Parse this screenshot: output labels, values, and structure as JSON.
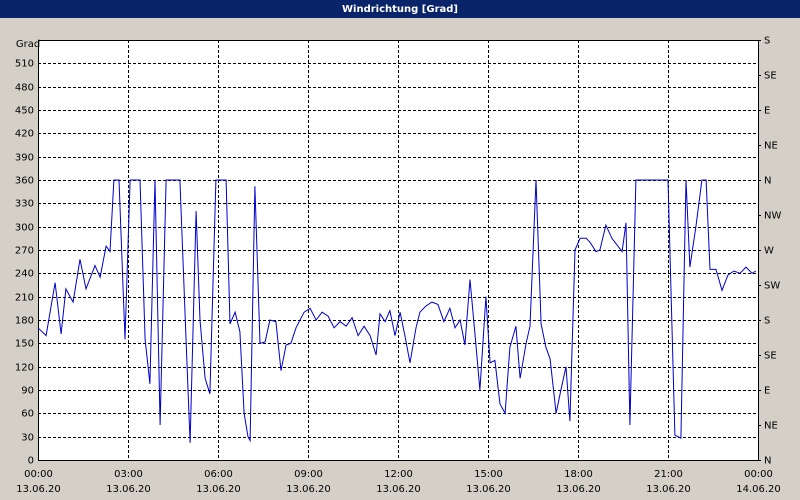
{
  "chart_data": {
    "type": "line",
    "title": "Windrichtung [Grad]",
    "y_label": "Grad",
    "color": "#0000cc",
    "grid": true,
    "x": [
      0,
      0.27,
      0.57,
      0.77,
      0.93,
      1.17,
      1.4,
      1.6,
      1.9,
      2.07,
      2.27,
      2.4,
      2.53,
      2.7,
      2.9,
      3.07,
      3.4,
      3.57,
      3.73,
      3.9,
      4.07,
      4.27,
      4.73,
      4.93,
      5.07,
      5.27,
      5.4,
      5.57,
      5.73,
      5.93,
      6.27,
      6.4,
      6.57,
      6.73,
      6.87,
      7,
      7.07,
      7.23,
      7.4,
      7.57,
      7.73,
      7.93,
      8.1,
      8.27,
      8.43,
      8.6,
      8.87,
      9.07,
      9.27,
      9.47,
      9.67,
      9.87,
      10.07,
      10.27,
      10.47,
      10.67,
      10.87,
      11.07,
      11.27,
      11.4,
      11.57,
      11.73,
      11.9,
      12.07,
      12.23,
      12.4,
      12.6,
      12.73,
      12.93,
      13.13,
      13.33,
      13.53,
      13.73,
      13.9,
      14.07,
      14.23,
      14.4,
      14.57,
      14.73,
      14.93,
      15.07,
      15.23,
      15.4,
      15.57,
      15.73,
      15.93,
      16.07,
      16.27,
      16.4,
      16.6,
      16.77,
      16.93,
      17.07,
      17.27,
      17.43,
      17.6,
      17.73,
      17.9,
      18.07,
      18.27,
      18.4,
      18.6,
      18.73,
      18.93,
      19.13,
      19.33,
      19.47,
      19.6,
      19.73,
      19.93,
      21,
      21.23,
      21.43,
      21.6,
      21.73,
      21.93,
      22.13,
      22.27,
      22.4,
      22.6,
      22.8,
      23,
      23.2,
      23.4,
      23.6,
      23.8,
      23.93
    ],
    "values": [
      170,
      160,
      228,
      162,
      220,
      203,
      258,
      220,
      250,
      235,
      275,
      268,
      360,
      360,
      155,
      360,
      360,
      155,
      98,
      360,
      45,
      360,
      360,
      160,
      22,
      320,
      180,
      105,
      85,
      360,
      360,
      175,
      190,
      165,
      60,
      30,
      25,
      352,
      150,
      152,
      180,
      178,
      115,
      148,
      150,
      170,
      190,
      195,
      180,
      190,
      185,
      170,
      178,
      172,
      183,
      160,
      172,
      160,
      135,
      188,
      178,
      192,
      160,
      190,
      160,
      125,
      170,
      190,
      198,
      203,
      200,
      178,
      195,
      170,
      180,
      148,
      232,
      160,
      90,
      210,
      125,
      128,
      72,
      60,
      145,
      172,
      105,
      150,
      172,
      360,
      175,
      145,
      130,
      60,
      90,
      120,
      50,
      270,
      285,
      285,
      280,
      268,
      270,
      302,
      285,
      275,
      268,
      305,
      45,
      360,
      360,
      32,
      28,
      360,
      248,
      300,
      360,
      360,
      245,
      245,
      218,
      238,
      243,
      240,
      248,
      240,
      243
    ],
    "xlim": [
      0,
      24
    ],
    "xticks": [
      {
        "value": 0,
        "label": "00:00",
        "date": "13.06.20"
      },
      {
        "value": 3,
        "label": "03:00",
        "date": "13.06.20"
      },
      {
        "value": 6,
        "label": "06:00",
        "date": "13.06.20"
      },
      {
        "value": 9,
        "label": "09:00",
        "date": "13.06.20"
      },
      {
        "value": 12,
        "label": "12:00",
        "date": "13.06.20"
      },
      {
        "value": 15,
        "label": "15:00",
        "date": "13.06.20"
      },
      {
        "value": 18,
        "label": "18:00",
        "date": "13.06.20"
      },
      {
        "value": 21,
        "label": "21:00",
        "date": "13.06.20"
      },
      {
        "value": 24,
        "label": "00:00",
        "date": "14.06.20"
      }
    ],
    "ylim": [
      0,
      540
    ],
    "yticks": [
      0,
      30,
      60,
      90,
      120,
      150,
      180,
      210,
      240,
      270,
      300,
      330,
      360,
      390,
      420,
      450,
      480,
      510
    ],
    "y2lim": [
      0,
      540
    ],
    "y2ticks": [
      {
        "value": 0,
        "label": "N"
      },
      {
        "value": 45,
        "label": "NE"
      },
      {
        "value": 90,
        "label": "E"
      },
      {
        "value": 135,
        "label": "SE"
      },
      {
        "value": 180,
        "label": "S"
      },
      {
        "value": 225,
        "label": "SW"
      },
      {
        "value": 270,
        "label": "W"
      },
      {
        "value": 315,
        "label": "NW"
      },
      {
        "value": 360,
        "label": "N"
      },
      {
        "value": 405,
        "label": "NE"
      },
      {
        "value": 450,
        "label": "E"
      },
      {
        "value": 495,
        "label": "SE"
      },
      {
        "value": 540,
        "label": "S"
      }
    ]
  }
}
